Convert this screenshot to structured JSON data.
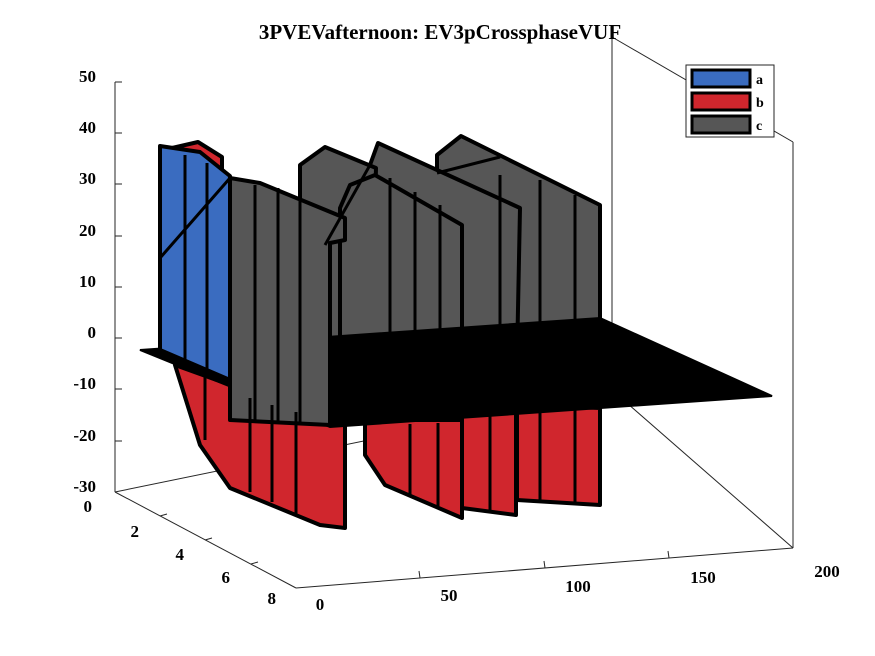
{
  "chart_data": {
    "type": "3d-area-ribbon",
    "title": "3PVEVafternoon: EV3pCrossphaseVUF",
    "xlabel": "",
    "ylabel": "",
    "zlabel": "",
    "xlim": [
      0,
      200
    ],
    "ylim": [
      0,
      8
    ],
    "zlim": [
      -30,
      50
    ],
    "x_ticks": [
      "0",
      "50",
      "100",
      "150",
      "200"
    ],
    "y_ticks": [
      "0",
      "2",
      "4",
      "6",
      "8"
    ],
    "z_ticks": [
      "50",
      "40",
      "30",
      "20",
      "10",
      "0",
      "-10",
      "-20",
      "-30"
    ],
    "grid": false,
    "legend_position": "top-right",
    "series": [
      {
        "name": "a",
        "color": "#3a6cc0",
        "values": [
          {
            "x": 0,
            "y": 2.3,
            "z": 15
          },
          {
            "x": 0,
            "y": 1.5,
            "z": 37
          },
          {
            "x": 20,
            "y": 1.5,
            "z": 36
          },
          {
            "x": 40,
            "y": 2.5,
            "z": 30
          }
        ]
      },
      {
        "name": "b",
        "color": "#d0262d",
        "values": [
          {
            "x": 0,
            "y": 2.3,
            "z": -3
          },
          {
            "x": 20,
            "y": 4,
            "z": -15
          },
          {
            "x": 40,
            "y": 5.5,
            "z": -20
          },
          {
            "x": 60,
            "y": 5.5,
            "z": -22
          },
          {
            "x": 80,
            "y": 5.5,
            "z": -20
          },
          {
            "x": 100,
            "y": 5.5,
            "z": -21
          },
          {
            "x": 120,
            "y": 5.5,
            "z": -20
          },
          {
            "x": 140,
            "y": 5.5,
            "z": -20
          },
          {
            "x": 160,
            "y": 5.5,
            "z": -19
          }
        ]
      },
      {
        "name": "c",
        "color": "#565656",
        "values": [
          {
            "x": 40,
            "y": 2.5,
            "z": 30
          },
          {
            "x": 60,
            "y": 3,
            "z": 27
          },
          {
            "x": 80,
            "y": 3,
            "z": 30
          },
          {
            "x": 100,
            "y": 3,
            "z": 32
          },
          {
            "x": 120,
            "y": 2.5,
            "z": 33
          },
          {
            "x": 140,
            "y": 2.5,
            "z": 32
          },
          {
            "x": 160,
            "y": 2.5,
            "z": 30
          }
        ]
      }
    ],
    "legend": [
      {
        "label": "a",
        "color": "#3a6cc0"
      },
      {
        "label": "b",
        "color": "#d0262d"
      },
      {
        "label": "c",
        "color": "#565656"
      }
    ]
  }
}
